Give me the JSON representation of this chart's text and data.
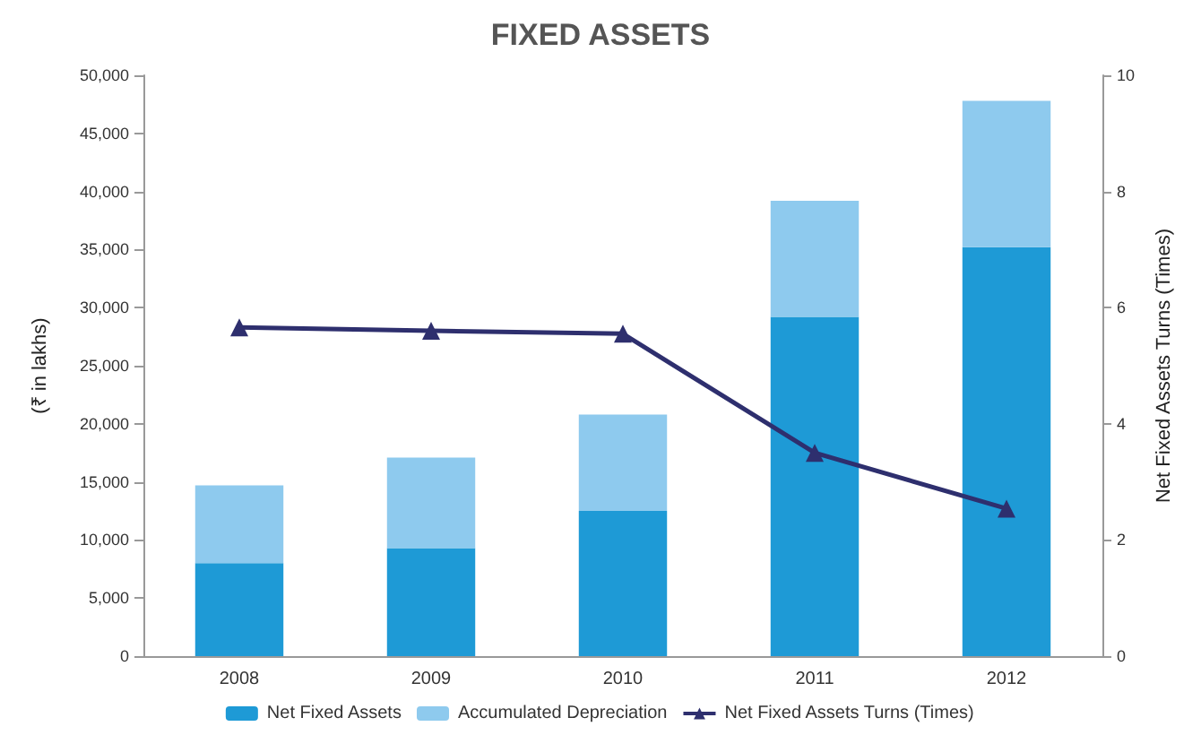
{
  "chart_data": {
    "type": "bar",
    "title": "FIXED ASSETS",
    "ylabel": "(₹ in lakhs)",
    "y2label": "Net Fixed Assets Turns (Times)",
    "categories": [
      "2008",
      "2009",
      "2010",
      "2011",
      "2012"
    ],
    "stacked": true,
    "series": [
      {
        "name": "Net Fixed Assets",
        "color": "#1e9ad6",
        "values": [
          8000,
          9300,
          12500,
          29200,
          35200
        ]
      },
      {
        "name": "Accumulated Depreciation",
        "color": "#8ecaee",
        "values": [
          6700,
          7800,
          8300,
          10000,
          12600
        ]
      },
      {
        "name": "Net Fixed Assets Turns (Times)",
        "type": "line",
        "axis": "y2",
        "color": "#2e2f6e",
        "marker": "triangle",
        "values": [
          5.66,
          5.6,
          5.55,
          3.5,
          2.54
        ]
      }
    ],
    "ylim": [
      0,
      50000
    ],
    "yticks": [
      {
        "value": 0,
        "label": "0"
      },
      {
        "value": 5000,
        "label": "5,000"
      },
      {
        "value": 10000,
        "label": "10,000"
      },
      {
        "value": 15000,
        "label": "15,000"
      },
      {
        "value": 20000,
        "label": "20,000"
      },
      {
        "value": 25000,
        "label": "25,000"
      },
      {
        "value": 30000,
        "label": "30,000"
      },
      {
        "value": 35000,
        "label": "35,000"
      },
      {
        "value": 40000,
        "label": "40,000"
      },
      {
        "value": 45000,
        "label": "45,000"
      },
      {
        "value": 50000,
        "label": "50,000"
      }
    ],
    "y2lim": [
      0,
      10
    ],
    "y2ticks": [
      0,
      2,
      4,
      6,
      8,
      10
    ],
    "grid": false,
    "legend": "bottom"
  }
}
